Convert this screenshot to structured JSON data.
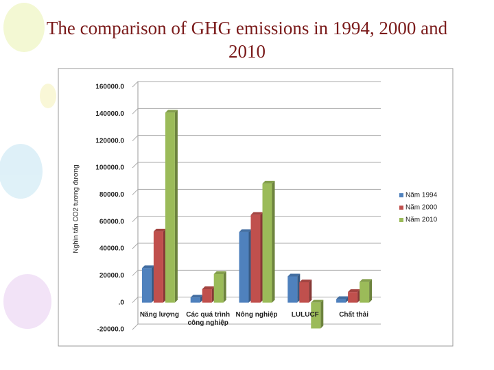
{
  "chart_data": {
    "type": "bar",
    "title": "The comparison of GHG emissions in 1994, 2000 and 2010",
    "y_label": "Nghìn tấn CO2 tương đương",
    "categories": [
      "Năng lượng",
      "Các quá trình công nghiệp",
      "Nông nghiệp",
      "LULUCF",
      "Chất thải"
    ],
    "series": [
      {
        "name": "Năm 1994",
        "color": "#4f81bd",
        "values": [
          25600,
          3800,
          52400,
          19400,
          2600
        ]
      },
      {
        "name": "Năm 2000",
        "color": "#c0504d",
        "values": [
          52800,
          10000,
          65100,
          15100,
          7900
        ]
      },
      {
        "name": "Năm 2010",
        "color": "#9bbb59",
        "values": [
          141000,
          21200,
          88400,
          -19200,
          15400
        ]
      }
    ],
    "ylim": [
      -20000,
      160000
    ],
    "yticks": [
      {
        "value": -20000,
        "label": "-20000.0"
      },
      {
        "value": 0,
        "label": ".0"
      },
      {
        "value": 20000,
        "label": "20000.0"
      },
      {
        "value": 40000,
        "label": "40000.0"
      },
      {
        "value": 60000,
        "label": "60000.0"
      },
      {
        "value": 80000,
        "label": "80000.0"
      },
      {
        "value": 100000,
        "label": "100000.0"
      },
      {
        "value": 120000,
        "label": "120000.0"
      },
      {
        "value": 140000,
        "label": "140000.0"
      },
      {
        "value": 160000,
        "label": "160000.0"
      }
    ],
    "grid": true,
    "legend": "right"
  }
}
